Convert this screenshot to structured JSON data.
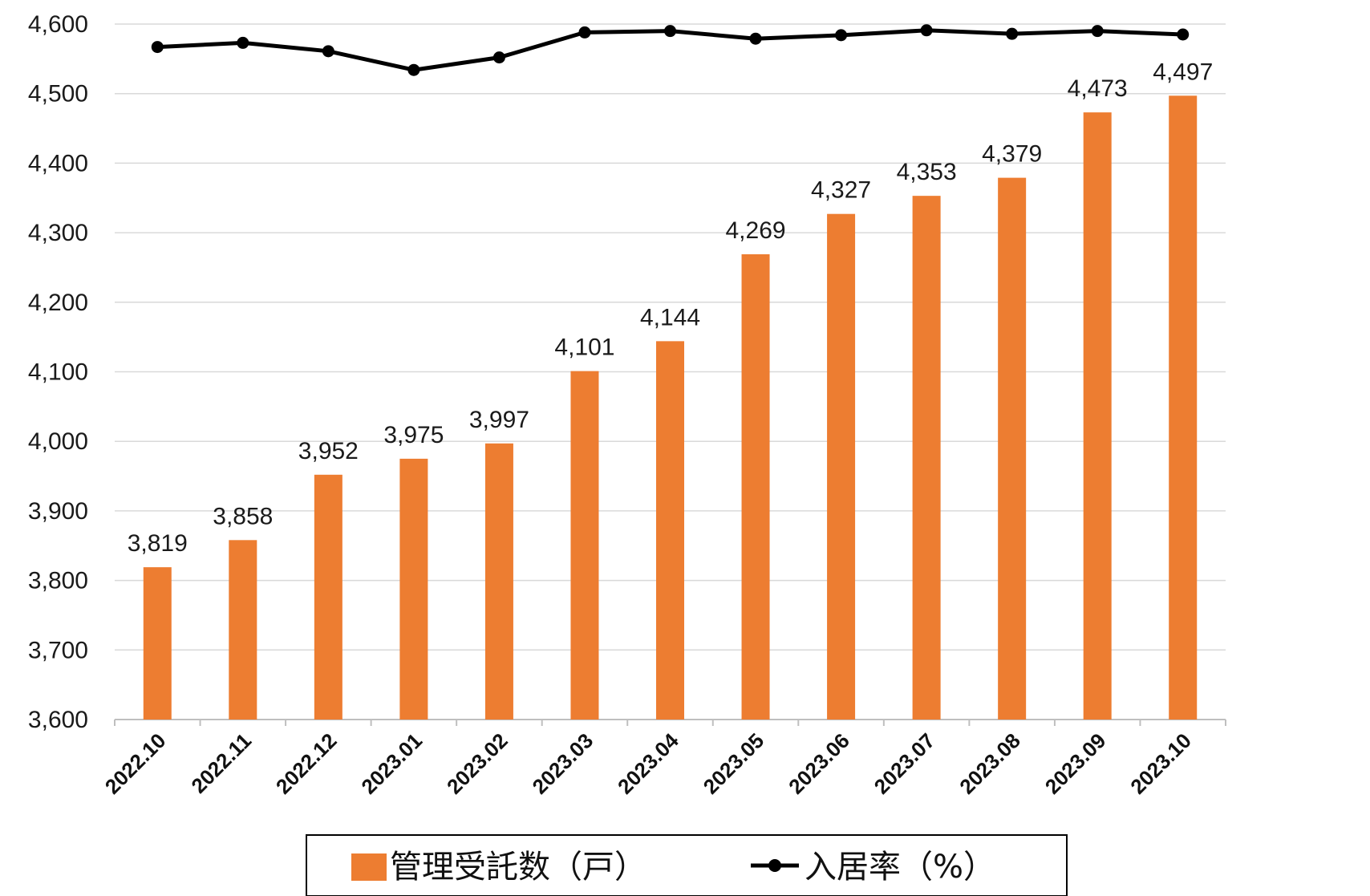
{
  "chart_data": {
    "type": "bar",
    "categories": [
      "2022.10",
      "2022.11",
      "2022.12",
      "2023.01",
      "2023.02",
      "2023.03",
      "2023.04",
      "2023.05",
      "2023.06",
      "2023.07",
      "2023.08",
      "2023.09",
      "2023.10"
    ],
    "series": [
      {
        "name": "管理受託数（戸）",
        "type": "bar",
        "color": "#ED7D31",
        "values": [
          3819,
          3858,
          3952,
          3975,
          3997,
          4101,
          4144,
          4269,
          4327,
          4353,
          4379,
          4473,
          4497
        ],
        "data_labels": [
          "3,819",
          "3,858",
          "3,952",
          "3,975",
          "3,997",
          "4,101",
          "4,144",
          "4,269",
          "4,327",
          "4,353",
          "4,379",
          "4,473",
          "4,497"
        ]
      },
      {
        "name": "入居率（%）",
        "type": "line",
        "color": "#000000",
        "values_on_left_axis": [
          4567,
          4573,
          4561,
          4534,
          4552,
          4588,
          4590,
          4579,
          4584,
          4591,
          4586,
          4590,
          4585
        ]
      }
    ],
    "ylim": [
      3600,
      4600
    ],
    "y_ticks": [
      "3,600",
      "3,700",
      "3,800",
      "3,900",
      "4,000",
      "4,100",
      "4,200",
      "4,300",
      "4,400",
      "4,500",
      "4,600"
    ],
    "grid": true,
    "legend": "bottom"
  }
}
